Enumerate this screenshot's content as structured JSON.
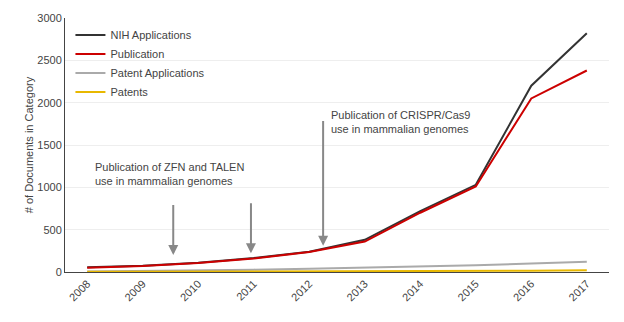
{
  "chart_data": {
    "type": "line",
    "x": [
      2008,
      2009,
      2010,
      2011,
      2012,
      2013,
      2014,
      2015,
      2016,
      2017
    ],
    "series": [
      {
        "name": "NIH Applications",
        "color": "#333333",
        "values": [
          55,
          75,
          110,
          165,
          240,
          380,
          720,
          1030,
          2200,
          2820
        ]
      },
      {
        "name": "Publication",
        "color": "#cc0000",
        "values": [
          50,
          70,
          105,
          160,
          235,
          360,
          700,
          1010,
          2050,
          2380
        ]
      },
      {
        "name": "Patent Applications",
        "color": "#aaaaaa",
        "values": [
          5,
          10,
          18,
          28,
          38,
          50,
          65,
          80,
          100,
          120
        ]
      },
      {
        "name": "Patents",
        "color": "#e8b800",
        "values": [
          2,
          3,
          4,
          5,
          6,
          8,
          10,
          12,
          15,
          20
        ]
      }
    ],
    "ylabel": "# of Documents in Category",
    "xlim": [
      2007.6,
      2017.4
    ],
    "xticks": [
      2008,
      2009,
      2010,
      2011,
      2012,
      2013,
      2014,
      2015,
      2016,
      2017
    ],
    "ylim": [
      0,
      3000
    ],
    "yticks": [
      0,
      500,
      1000,
      1500,
      2000,
      2500,
      3000
    ],
    "grid": true,
    "legend": "upper left",
    "annotations": [
      {
        "text": "Publication of ZFN and TALEN\nuse in mammalian genomes",
        "x": 2008.1,
        "y": 1340,
        "arrows": [
          {
            "x": 2009.55,
            "y_from": 810,
            "y_to": 200
          },
          {
            "x": 2010.95,
            "y_from": 830,
            "y_to": 220
          }
        ]
      },
      {
        "text": "Publication of CRISPR/Cas9\nuse in mammalian genomes",
        "x": 2012.35,
        "y": 1950,
        "arrows": [
          {
            "x": 2012.25,
            "y_from": 1800,
            "y_to": 310
          }
        ]
      }
    ]
  }
}
